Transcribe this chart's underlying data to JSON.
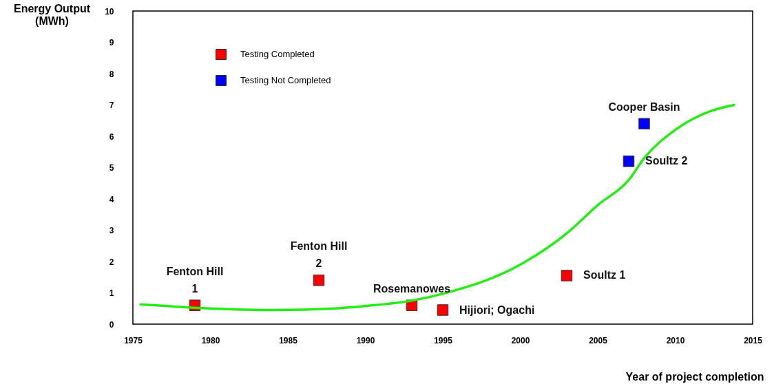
{
  "chart_data": {
    "type": "scatter",
    "xlabel": "Year of project completion",
    "ylabel": "Energy Output\n(MWh)",
    "xlim": [
      1975,
      2015
    ],
    "xticks": [
      1975,
      1980,
      1985,
      1990,
      1995,
      2000,
      2005,
      2010,
      2015
    ],
    "ylim": [
      0,
      10
    ],
    "yticks": [
      0,
      1,
      2,
      3,
      4,
      5,
      6,
      7,
      8,
      9,
      10
    ],
    "grid": false,
    "legend": "top left",
    "series": [
      {
        "name": "Testing Completed",
        "color": "#ff0000",
        "marker": "square",
        "x": [
          1979,
          1987,
          1993,
          1995,
          2003
        ],
        "values": [
          0.6,
          1.4,
          0.6,
          0.45,
          1.55
        ]
      },
      {
        "name": "Testing Not Completed",
        "color": "#0000ff",
        "marker": "square",
        "x": [
          2007,
          2008
        ],
        "values": [
          5.2,
          6.4
        ]
      },
      {
        "type": "line",
        "color": "#22ee11",
        "marker": "none",
        "x": [
          1975.5,
          1980,
          1984,
          1988,
          1990,
          1993,
          1995,
          2000,
          2003,
          2005,
          2007,
          2008,
          2010,
          2012,
          2013.8
        ],
        "values": [
          0.63,
          0.5,
          0.45,
          0.5,
          0.58,
          0.75,
          0.97,
          1.9,
          2.9,
          3.8,
          4.6,
          5.3,
          6.2,
          6.75,
          7.0
        ]
      }
    ],
    "annotations": [
      {
        "text": "Fenton Hill\n1",
        "x": 1979,
        "y": 0.6
      },
      {
        "text": "Fenton Hill\n2",
        "x": 1987,
        "y": 1.4
      },
      {
        "text": "Rosemanowes",
        "x": 1993,
        "y": 0.6
      },
      {
        "text": "Hijiori; Ogachi",
        "x": 1995,
        "y": 0.45
      },
      {
        "text": "Soultz 1",
        "x": 2003,
        "y": 1.55
      },
      {
        "text": "Soultz 2",
        "x": 2007,
        "y": 5.2
      },
      {
        "text": "Cooper Basin",
        "x": 2008,
        "y": 6.4
      }
    ]
  }
}
